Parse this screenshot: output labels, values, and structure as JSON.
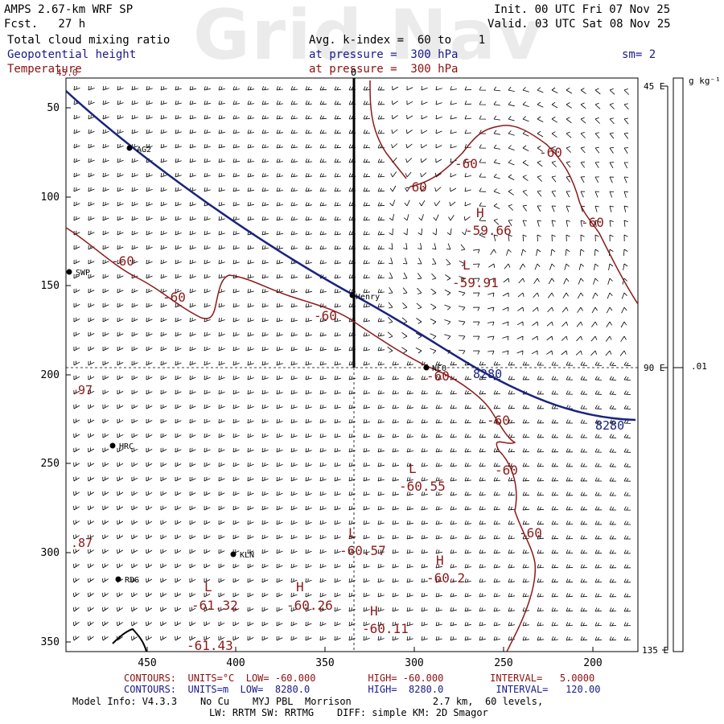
{
  "watermark": "Grid Nav",
  "header": {
    "model": "AMPS 2.67-km WRF SP",
    "fcst": "Fcst.   27 h",
    "init": "Init. 00 UTC Fri 07 Nov 25",
    "valid": "Valid. 03 UTC Sat 08 Nov 25",
    "field1": "Total cloud mixing ratio",
    "field2": "Geopotential height",
    "field3": "Temperature",
    "avg": "Avg. k-index =  60 to    1",
    "pressure1": "at pressure =  300 hPa",
    "pressure2": "at pressure =  300 hPa",
    "sm": "sm= 2",
    "cross_top": "0",
    "corner_label": "45.0"
  },
  "colorbar": {
    "units": "g kg⁻¹",
    "value": ".01",
    "left_labels": [
      "45 E",
      "90 E",
      "135 E"
    ]
  },
  "axes": {
    "y_ticks": [
      "50",
      "100",
      "150",
      "200",
      "250",
      "300",
      "350"
    ],
    "x_ticks": [
      "450",
      "400",
      "350",
      "300",
      "250",
      "200"
    ]
  },
  "colors": {
    "height_contour": "#1a237e",
    "temp_contour": "#8b1a1a",
    "barb": "#000000"
  },
  "stations": [
    {
      "name": "AG2"
    },
    {
      "name": "SWP"
    },
    {
      "name": "Henry"
    },
    {
      "name": "NCO"
    },
    {
      "name": "HRC"
    },
    {
      "name": "KLN"
    },
    {
      "name": "RDG"
    }
  ],
  "contour_labels": {
    "temp": [
      "-60",
      "-60",
      "-60",
      "-60",
      "-60",
      "-60",
      "-60",
      "-60",
      "-60",
      "-60",
      "-60",
      "-60",
      "-60"
    ],
    "height": [
      "8280",
      "8280"
    ],
    "edge": [
      ".97",
      ".87"
    ],
    "extrema": [
      {
        "letter": "H",
        "value": "-59.66"
      },
      {
        "letter": "L",
        "value": "-59.91"
      },
      {
        "letter": "L",
        "value": "-60.55"
      },
      {
        "letter": "L",
        "value": "-60.57"
      },
      {
        "letter": "H",
        "value": "-60.2"
      },
      {
        "letter": "L",
        "value": "-61.32"
      },
      {
        "letter": "H",
        "value": "-60.26"
      },
      {
        "letter": "H",
        "value": "-60.11"
      },
      {
        "letter": "L",
        "value": "-61.43"
      }
    ]
  },
  "footer": {
    "temp_contours": "CONTOURS:  UNITS=°C  LOW= -60.000         HIGH= -60.000        INTERVAL=   5.0000",
    "hgt_contours": "CONTOURS:  UNITS=m  LOW=  8280.0          HIGH=  8280.0         INTERVAL=   120.00",
    "model_info": "Model Info: V4.3.3    No Cu    MYJ PBL  Morrison              2.7 km,  60 levels,",
    "physics": "LW: RRTM SW: RRTMG    DIFF: simple KM: 2D Smagor"
  }
}
